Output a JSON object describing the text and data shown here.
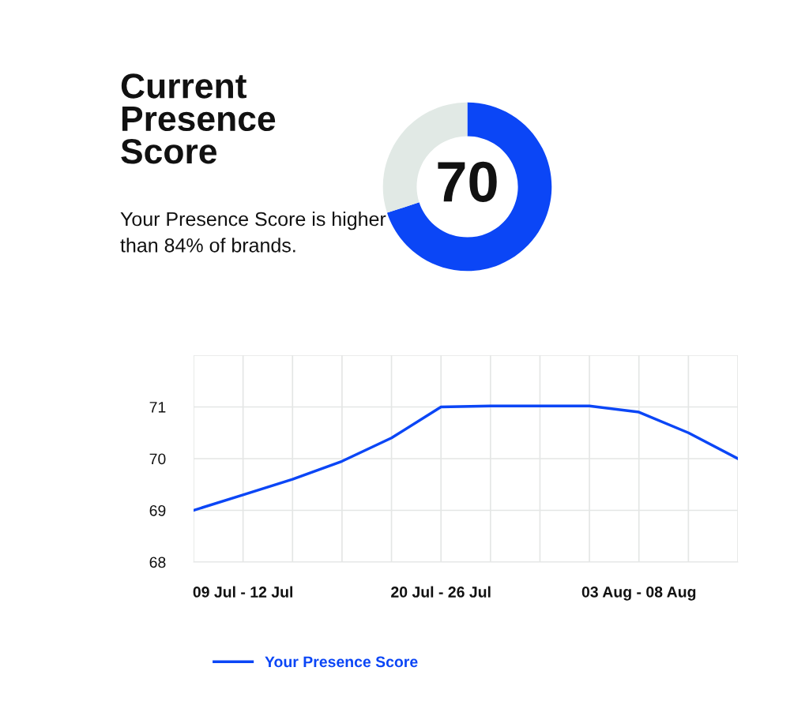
{
  "chart_data": [
    {
      "type": "donut",
      "title": "Current Presence Score",
      "annotations": [
        "Your Presence Score is higher than 84% of brands."
      ],
      "categories": [
        null,
        null
      ],
      "values": [
        70,
        30
      ],
      "colors": [
        "#0b46f6",
        "#e1e9e5"
      ],
      "value_labels": [
        "70",
        null
      ]
    },
    {
      "type": "line",
      "categories": [
        null,
        "09 Jul - 12 Jul",
        null,
        null,
        null,
        "20 Jul - 26 Jul",
        null,
        null,
        null,
        "03 Aug - 08 Aug",
        null,
        null
      ],
      "series": [
        {
          "name": "Your Presence Score",
          "color": "#0b46f6",
          "values": [
            69.0,
            69.3,
            69.6,
            69.95,
            70.4,
            71.0,
            71.02,
            71.02,
            71.02,
            70.9,
            70.5,
            70.0
          ]
        }
      ],
      "ylim": [
        68,
        72
      ],
      "yticks": [
        68,
        69,
        70,
        71,
        {
          "value": 72,
          "label": null
        }
      ],
      "grid": true,
      "legend": "bottom"
    }
  ]
}
